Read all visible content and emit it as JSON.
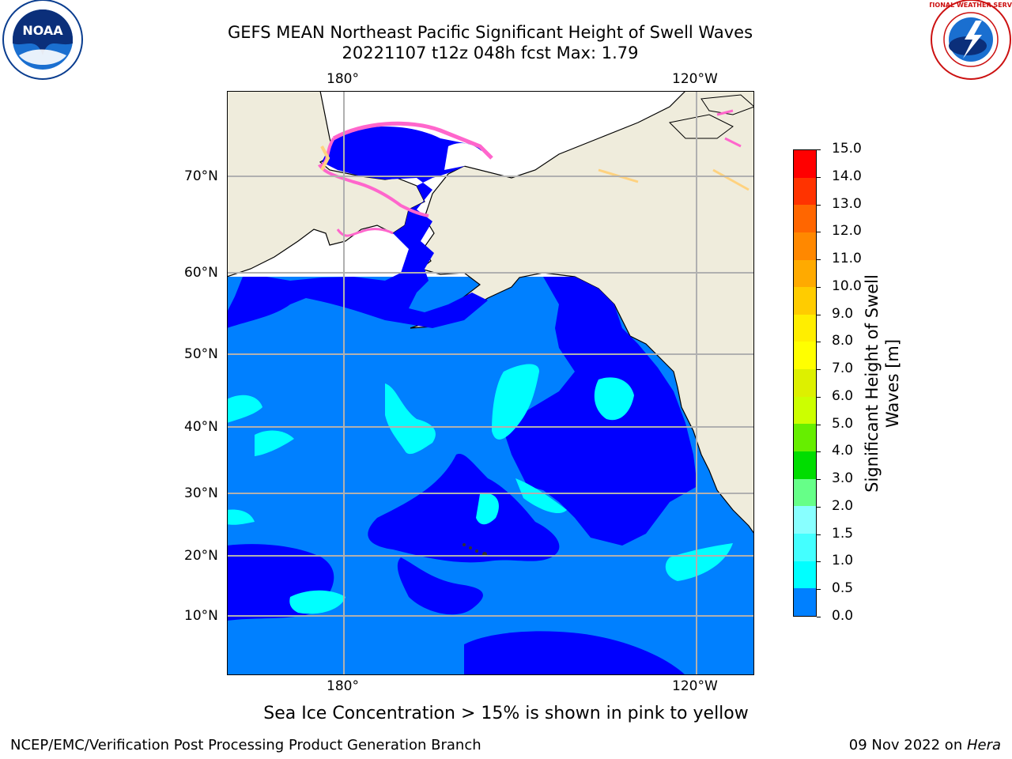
{
  "header": {
    "title_line1": "GEFS MEAN Northeast Pacific Significant Height of Swell Waves",
    "title_line2": "20221107 t12z 048h fcst   Max: 1.79"
  },
  "logos": {
    "left": {
      "name": "noaa-logo",
      "text": "NOAA"
    },
    "right": {
      "name": "nws-logo",
      "text": "NATIONAL WEATHER SERVICE"
    }
  },
  "map": {
    "lon_labels": [
      "180°",
      "120°W"
    ],
    "lat_labels": [
      "70°N",
      "60°N",
      "50°N",
      "40°N",
      "30°N",
      "20°N",
      "10°N"
    ],
    "colors": {
      "land": "#efecdc",
      "ocean_0_05": "#0000ff",
      "ocean_05_1": "#0080ff",
      "ocean_1_15": "#00ffff",
      "ice_edge": "#ff66cc",
      "ice_yellow": "#ffd27f",
      "grid": "#b0b0b0"
    }
  },
  "colorbar": {
    "title_line1": "Significant Height of Swell",
    "title_line2": "Waves [m]",
    "ticks": [
      "15.0",
      "14.0",
      "13.0",
      "12.0",
      "11.0",
      "10.0",
      "9.0",
      "8.0",
      "7.0",
      "6.0",
      "5.0",
      "4.0",
      "3.0",
      "2.0",
      "1.5",
      "1.0",
      "0.5",
      "0.0"
    ],
    "colors": [
      "#ff0000",
      "#ff3300",
      "#ff6600",
      "#ff8800",
      "#ffaa00",
      "#ffcc00",
      "#ffee00",
      "#ffff00",
      "#ddf000",
      "#ccff00",
      "#66ee00",
      "#00dd00",
      "#66ff88",
      "#88ffff",
      "#44ffff",
      "#00ffff",
      "#0080ff",
      "#0000ff"
    ]
  },
  "caption": "Sea Ice Concentration > 15% is shown in pink to yellow",
  "footer": {
    "left": "NCEP/EMC/Verification Post Processing Product Generation Branch",
    "right_prefix": "09 Nov 2022 on ",
    "right_host": "Hera"
  }
}
